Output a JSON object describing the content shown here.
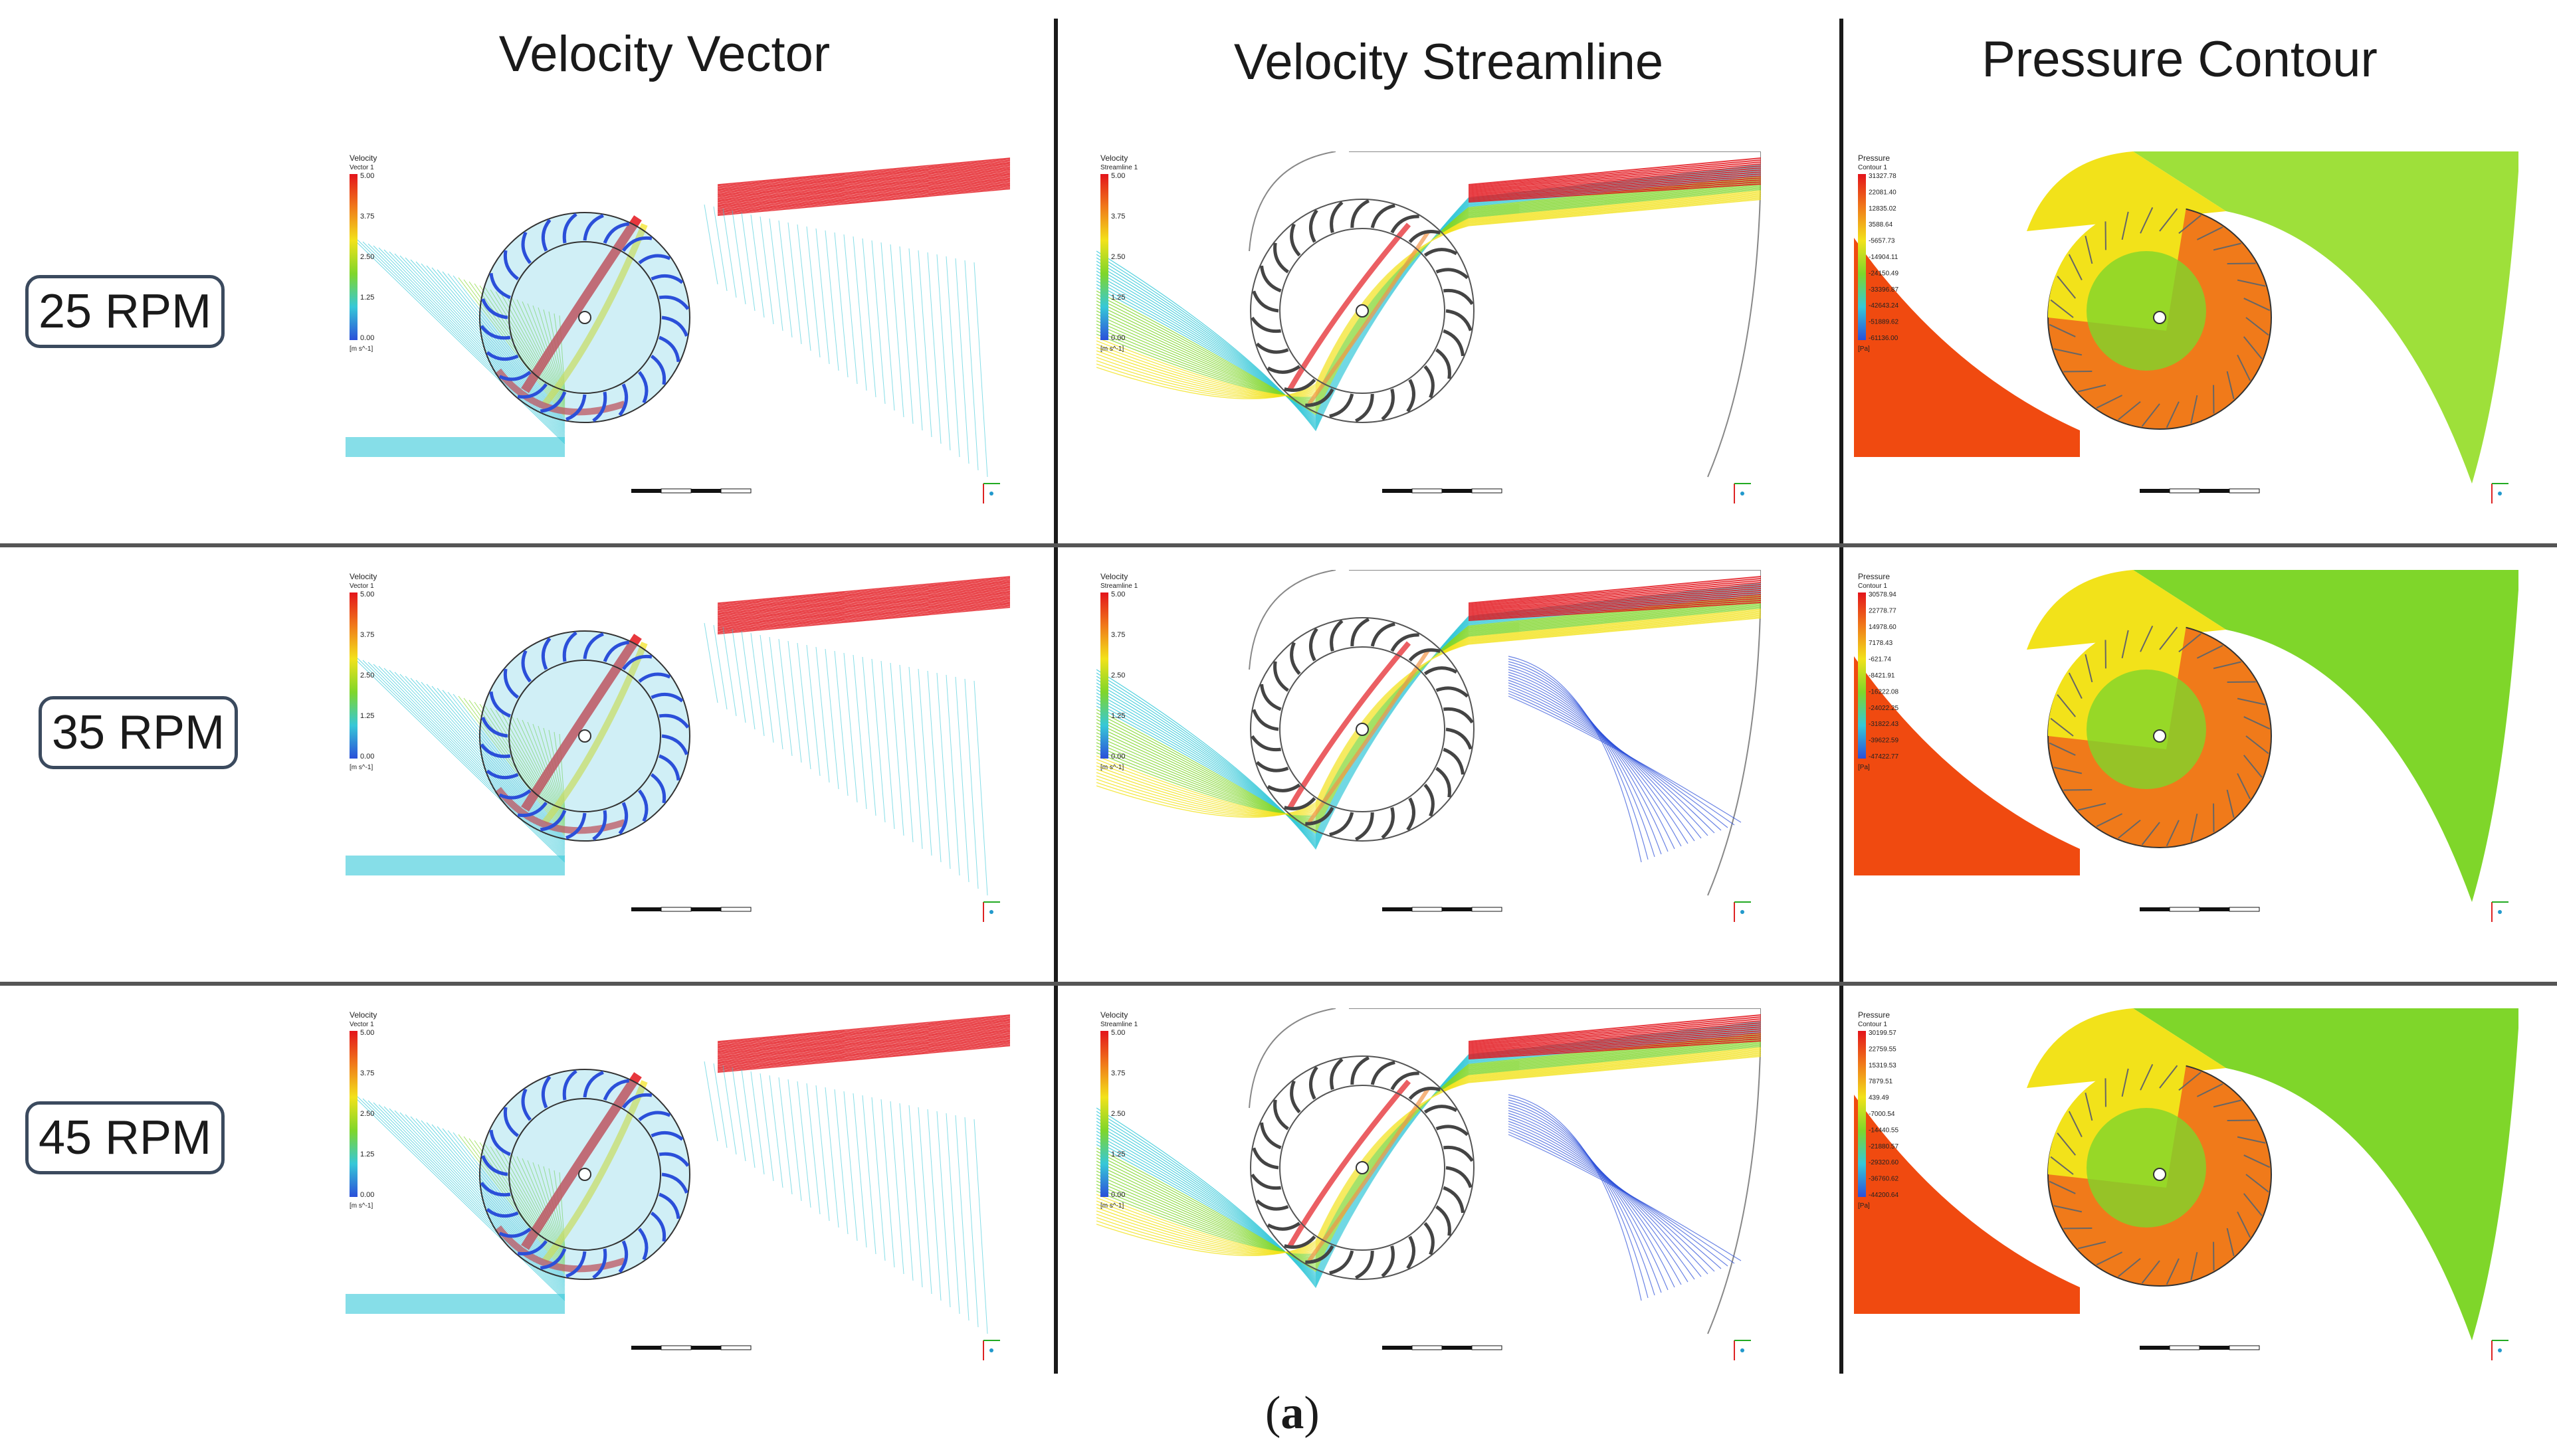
{
  "columns": [
    {
      "title": "Velocity Vector"
    },
    {
      "title": "Velocity Streamline"
    },
    {
      "title": "Pressure Contour"
    }
  ],
  "rows": [
    {
      "label": "25 RPM"
    },
    {
      "label": "35 RPM"
    },
    {
      "label": "45 RPM"
    }
  ],
  "caption": {
    "open": "(",
    "letter": "a",
    "close": ")"
  },
  "legend": {
    "velocity_vector": {
      "title": "Velocity",
      "sub": "Vector 1",
      "ticks": [
        "5.00",
        "3.75",
        "2.50",
        "1.25",
        "0.00"
      ],
      "unit": "[m s^-1]"
    },
    "velocity_streamline": {
      "title": "Velocity",
      "sub": "Streamline 1",
      "ticks": [
        "5.00",
        "3.75",
        "2.50",
        "1.25",
        "0.00"
      ],
      "unit": "[m s^-1]"
    },
    "pressure": [
      {
        "title": "Pressure",
        "sub": "Contour 1",
        "ticks": [
          "31327.78",
          "22081.40",
          "12835.02",
          "3588.64",
          "-5657.73",
          "-14904.11",
          "-24150.49",
          "-33396.87",
          "-42643.24",
          "-51889.62",
          "-61136.00"
        ],
        "unit": "[Pa]"
      },
      {
        "title": "Pressure",
        "sub": "Contour 1",
        "ticks": [
          "30578.94",
          "22778.77",
          "14978.60",
          "7178.43",
          "-621.74",
          "-8421.91",
          "-16222.08",
          "-24022.25",
          "-31822.43",
          "-39622.59",
          "-47422.77"
        ],
        "unit": "[Pa]"
      },
      {
        "title": "Pressure",
        "sub": "Contour 1",
        "ticks": [
          "30199.57",
          "22759.55",
          "15319.53",
          "7879.51",
          "439.49",
          "-7000.54",
          "-14440.55",
          "-21880.57",
          "-29320.60",
          "-36760.62",
          "-44200.64"
        ],
        "unit": "[Pa]"
      }
    ]
  },
  "colors": {
    "red": "#e3141b",
    "orange": "#f07a1a",
    "yellow": "#f2e21a",
    "green": "#7fd62a",
    "cyan": "#36c8d8",
    "blue": "#2b4fd9",
    "pressure_red": "#f04a10",
    "pressure_green": "#9ee03a"
  }
}
